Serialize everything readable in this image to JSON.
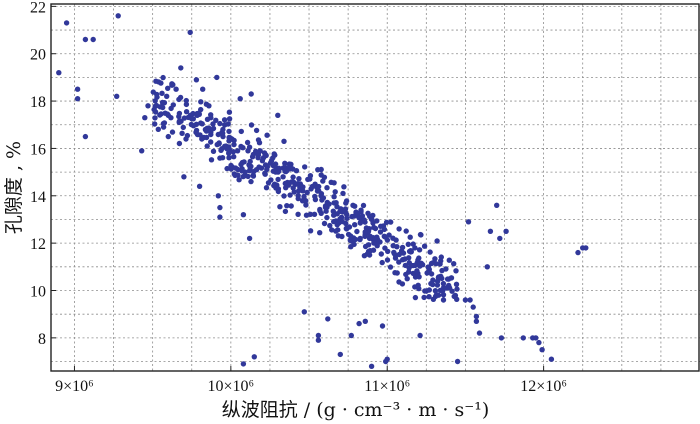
{
  "chart_data": {
    "type": "scatter",
    "xlabel": "纵波阻抗 / (g · cm⁻³ · m · s⁻¹)",
    "ylabel": "孔隙度 , %",
    "x_unit_scale": "×10⁶",
    "xlim": [
      8.85,
      13.0
    ],
    "ylim": [
      6.6,
      22.1
    ],
    "x_tick_values": [
      9,
      10,
      11,
      12
    ],
    "x_tick_labels": [
      "9×10⁶",
      "10×10⁶",
      "11×10⁶",
      "12×10⁶"
    ],
    "y_tick_values": [
      8,
      10,
      12,
      14,
      16,
      18,
      20,
      22
    ],
    "y_tick_labels": [
      "8",
      "10",
      "12",
      "14",
      "16",
      "18",
      "20",
      "22"
    ],
    "grid": true,
    "marker_color": "#31389a",
    "points": [
      [
        8.9,
        19.2
      ],
      [
        8.95,
        21.3
      ],
      [
        9.02,
        18.5
      ],
      [
        9.02,
        18.1
      ],
      [
        9.07,
        20.6
      ],
      [
        9.12,
        20.6
      ],
      [
        9.07,
        16.5
      ],
      [
        9.27,
        18.2
      ],
      [
        9.28,
        21.6
      ],
      [
        9.45,
        17.3
      ],
      [
        9.47,
        17.8
      ],
      [
        9.43,
        15.9
      ],
      [
        9.57,
        16.9
      ],
      [
        9.6,
        17.4
      ],
      [
        9.6,
        16.5
      ],
      [
        9.65,
        18.5
      ],
      [
        9.68,
        19.4
      ],
      [
        9.74,
        20.9
      ],
      [
        9.78,
        18.9
      ],
      [
        9.82,
        18.5
      ],
      [
        9.86,
        17.8
      ],
      [
        9.91,
        19.0
      ],
      [
        9.7,
        14.8
      ],
      [
        9.8,
        14.4
      ],
      [
        9.92,
        14.0
      ],
      [
        9.93,
        13.5
      ],
      [
        9.93,
        13.1
      ],
      [
        10.06,
        18.1
      ],
      [
        10.13,
        18.3
      ],
      [
        10.08,
        13.2
      ],
      [
        10.12,
        12.2
      ],
      [
        10.08,
        6.9
      ],
      [
        10.15,
        7.2
      ],
      [
        10.3,
        17.4
      ],
      [
        10.34,
        16.3
      ],
      [
        10.47,
        9.1
      ],
      [
        10.56,
        8.1
      ],
      [
        10.56,
        7.9
      ],
      [
        10.62,
        8.8
      ],
      [
        10.7,
        7.3
      ],
      [
        10.77,
        8.1
      ],
      [
        10.82,
        8.6
      ],
      [
        10.86,
        8.7
      ],
      [
        10.9,
        6.8
      ],
      [
        10.97,
        8.5
      ],
      [
        10.99,
        7.0
      ],
      [
        11.0,
        7.1
      ],
      [
        11.18,
        9.7
      ],
      [
        11.21,
        8.1
      ],
      [
        11.45,
        7.0
      ],
      [
        11.5,
        9.6
      ],
      [
        11.53,
        9.6
      ],
      [
        11.55,
        9.3
      ],
      [
        11.57,
        8.9
      ],
      [
        11.57,
        8.7
      ],
      [
        11.59,
        8.2
      ],
      [
        11.52,
        12.9
      ],
      [
        11.64,
        11.0
      ],
      [
        11.66,
        12.5
      ],
      [
        11.7,
        13.6
      ],
      [
        11.72,
        12.2
      ],
      [
        11.76,
        12.5
      ],
      [
        11.73,
        8.0
      ],
      [
        11.87,
        8.0
      ],
      [
        11.93,
        8.0
      ],
      [
        11.95,
        8.0
      ],
      [
        11.97,
        7.8
      ],
      [
        11.99,
        7.5
      ],
      [
        12.05,
        7.1
      ],
      [
        12.22,
        11.6
      ],
      [
        12.25,
        11.8
      ],
      [
        12.27,
        11.8
      ]
    ],
    "cluster": {
      "count": 540,
      "x_range": [
        9.5,
        11.45
      ],
      "trend": "y ≈ 17.6 − 4.2·(x − 9.65)",
      "spread": 1.05
    }
  }
}
